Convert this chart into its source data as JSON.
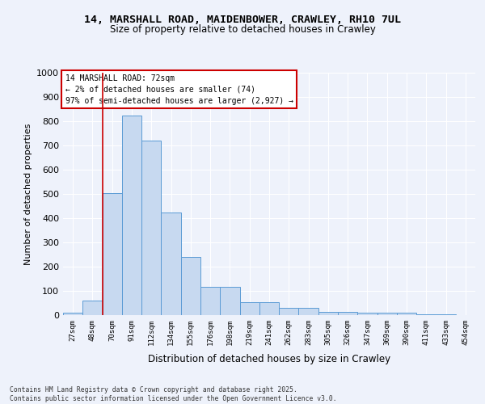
{
  "title_line1": "14, MARSHALL ROAD, MAIDENBOWER, CRAWLEY, RH10 7UL",
  "title_line2": "Size of property relative to detached houses in Crawley",
  "xlabel": "Distribution of detached houses by size in Crawley",
  "ylabel": "Number of detached properties",
  "bar_labels": [
    "27sqm",
    "48sqm",
    "70sqm",
    "91sqm",
    "112sqm",
    "134sqm",
    "155sqm",
    "176sqm",
    "198sqm",
    "219sqm",
    "241sqm",
    "262sqm",
    "283sqm",
    "305sqm",
    "326sqm",
    "347sqm",
    "369sqm",
    "390sqm",
    "411sqm",
    "433sqm",
    "454sqm"
  ],
  "bar_values": [
    10,
    60,
    505,
    825,
    720,
    425,
    240,
    118,
    118,
    55,
    55,
    30,
    30,
    15,
    15,
    10,
    10,
    10,
    3,
    3,
    0
  ],
  "bar_color": "#c7d9f0",
  "bar_edge_color": "#5b9bd5",
  "vline_x": 1.5,
  "vline_color": "#cc0000",
  "annotation_title": "14 MARSHALL ROAD: 72sqm",
  "annotation_line1": "← 2% of detached houses are smaller (74)",
  "annotation_line2": "97% of semi-detached houses are larger (2,927) →",
  "annotation_box_color": "#cc0000",
  "ylim": [
    0,
    1000
  ],
  "yticks": [
    0,
    100,
    200,
    300,
    400,
    500,
    600,
    700,
    800,
    900,
    1000
  ],
  "footer_line1": "Contains HM Land Registry data © Crown copyright and database right 2025.",
  "footer_line2": "Contains public sector information licensed under the Open Government Licence v3.0.",
  "bg_color": "#eef2fb"
}
